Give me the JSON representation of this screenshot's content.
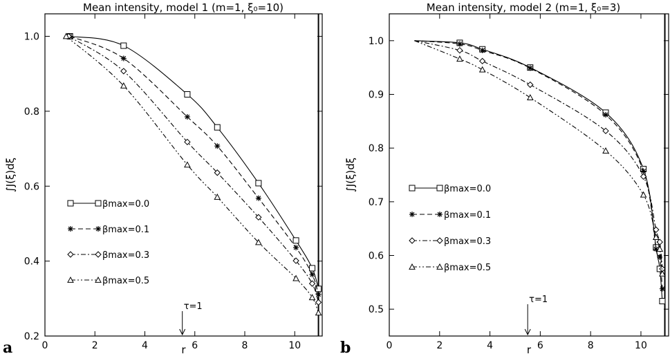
{
  "chart_data": [
    {
      "type": "line",
      "panel_label": "a",
      "title": "Mean intensity, model 1 (m=1, ξ₀=10)",
      "xlabel": "r",
      "ylabel": "∫J(ξ)dξ",
      "xlim": [
        0,
        11.1
      ],
      "ylim": [
        0.2,
        1.06
      ],
      "xticks": [
        "0",
        "2",
        "4",
        "6",
        "8",
        "10"
      ],
      "yticks": [
        "0.2",
        "0.4",
        "0.6",
        "0.8",
        "1.0"
      ],
      "vline_x": 10.95,
      "annotation": {
        "label": "τ=1",
        "x": 5.5
      },
      "legend": {
        "placement": "left-center"
      },
      "series": [
        {
          "name": "βmax=0.0",
          "marker": "square",
          "dash": "solid",
          "x": [
            1.0,
            3.15,
            5.7,
            6.9,
            8.55,
            10.05,
            10.7,
            10.95
          ],
          "y": [
            1.0,
            0.975,
            0.845,
            0.757,
            0.608,
            0.455,
            0.381,
            0.326
          ]
        },
        {
          "name": "βmax=0.1",
          "marker": "asterisk",
          "dash": "dashed",
          "x": [
            1.0,
            3.15,
            5.7,
            6.9,
            8.55,
            10.05,
            10.7,
            10.95
          ],
          "y": [
            1.0,
            0.941,
            0.785,
            0.707,
            0.568,
            0.436,
            0.364,
            0.311
          ]
        },
        {
          "name": "βmax=0.3",
          "marker": "diamond",
          "dash": "dashdot",
          "x": [
            0.95,
            3.15,
            5.7,
            6.9,
            8.55,
            10.05,
            10.7,
            10.95
          ],
          "y": [
            1.0,
            0.907,
            0.718,
            0.636,
            0.517,
            0.401,
            0.34,
            0.29
          ]
        },
        {
          "name": "βmax=0.5",
          "marker": "triangle",
          "dash": "dashdotdot",
          "x": [
            0.85,
            3.15,
            5.7,
            6.9,
            8.55,
            10.05,
            10.7,
            10.95
          ],
          "y": [
            1.0,
            0.868,
            0.657,
            0.571,
            0.45,
            0.354,
            0.303,
            0.262
          ]
        }
      ]
    },
    {
      "type": "line",
      "panel_label": "b",
      "title": "Mean intensity, model 2 (m=1, ξ₀=3)",
      "xlabel": "r",
      "ylabel": "∫J(ξ)dξ",
      "xlim": [
        0,
        11.1
      ],
      "ylim": [
        0.45,
        1.05
      ],
      "xticks": [
        "0",
        "2",
        "4",
        "6",
        "8",
        "10"
      ],
      "yticks": [
        "0.5",
        "0.6",
        "0.7",
        "0.8",
        "0.9",
        "1.0"
      ],
      "vline_x": 10.95,
      "annotation": {
        "label": "τ=1",
        "x": 5.5
      },
      "legend": {
        "placement": "left-center"
      },
      "series": [
        {
          "name": "βmax=0.0",
          "marker": "square",
          "dash": "solid",
          "x": [
            2.8,
            3.7,
            5.6,
            8.6,
            10.1,
            10.6,
            10.75,
            10.85
          ],
          "y": [
            0.996,
            0.984,
            0.95,
            0.866,
            0.761,
            0.615,
            0.575,
            0.515
          ]
        },
        {
          "name": "βmax=0.1",
          "marker": "asterisk",
          "dash": "dashed",
          "x": [
            2.8,
            3.7,
            5.6,
            8.6,
            10.1,
            10.6,
            10.75,
            10.85
          ],
          "y": [
            0.994,
            0.982,
            0.949,
            0.862,
            0.757,
            0.612,
            0.597,
            0.538
          ]
        },
        {
          "name": "βmax=0.3",
          "marker": "diamond",
          "dash": "dashdot",
          "x": [
            2.8,
            3.7,
            5.6,
            8.6,
            10.1,
            10.6,
            10.75,
            10.85
          ],
          "y": [
            0.982,
            0.962,
            0.918,
            0.832,
            0.747,
            0.648,
            0.625,
            0.575
          ]
        },
        {
          "name": "βmax=0.5",
          "marker": "triangle",
          "dash": "dashdotdot",
          "x": [
            2.8,
            3.7,
            5.6,
            8.6,
            10.1,
            10.6,
            10.75,
            10.85
          ],
          "y": [
            0.966,
            0.946,
            0.894,
            0.795,
            0.713,
            0.634,
            0.612,
            0.566
          ]
        }
      ]
    }
  ]
}
